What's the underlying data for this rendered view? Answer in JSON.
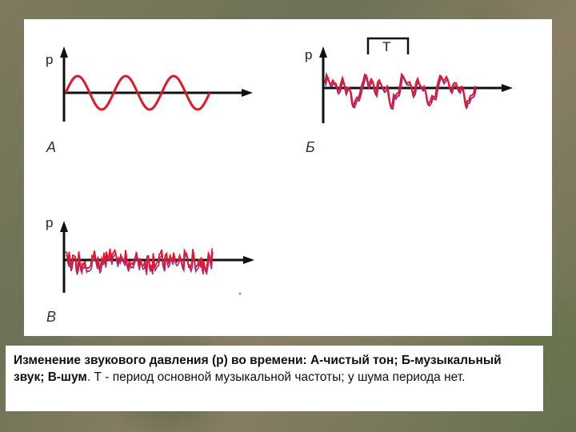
{
  "diagrams": {
    "a": {
      "axis_label": "p",
      "panel_label": "А"
    },
    "b": {
      "axis_label": "p",
      "panel_label": "Б",
      "period_label": "T"
    },
    "c": {
      "axis_label": "p",
      "panel_label": "В"
    }
  },
  "caption": {
    "bold_part": "Изменение звукового давления (р) во времени: А-чистый тон; Б-музыкальный звук; В-шум",
    "regular_part": ". Т - период основной музыкальной частоты; у шума периода нет."
  },
  "colors": {
    "wave": "#e0182c",
    "axis": "#111111",
    "noise_shadow": "#9a2a8a"
  }
}
